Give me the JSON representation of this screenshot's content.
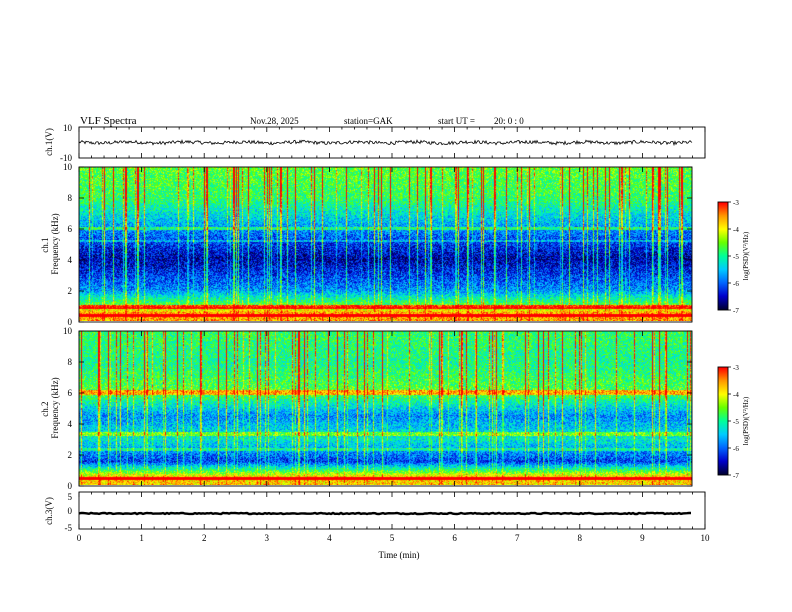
{
  "header": {
    "title": "VLF Spectra",
    "date": "Nov.28, 2025",
    "station": "station=GAK",
    "start": "start UT =",
    "start_time": "20: 0 : 0"
  },
  "chart_data": [
    {
      "type": "line",
      "id": "ch1-waveform",
      "ylabel": "ch.1(V)",
      "ylim": [
        -10,
        10
      ],
      "yticks": [
        "10",
        "-10"
      ],
      "xlim": [
        0,
        10
      ],
      "series_color": "#000000"
    },
    {
      "type": "heatmap",
      "id": "ch1-spectrogram",
      "ylabel": "ch.1\nFrequency (kHz)",
      "ylim": [
        0,
        10
      ],
      "yticks": [
        "0",
        "2",
        "4",
        "6",
        "8",
        "10"
      ],
      "xlim": [
        0,
        9.8
      ],
      "colorbar": {
        "label": "log(PSD)(V²/Hz)",
        "range": [
          -7,
          -3
        ],
        "ticks": [
          "-3",
          "-4",
          "-5",
          "-6",
          "-7"
        ]
      },
      "profile_note_levels": [
        {
          "freq_khz": 0.5,
          "level": 0.85
        },
        {
          "freq_khz": 1.0,
          "level": 0.6
        },
        {
          "freq_khz": 2.0,
          "level": 0.3
        },
        {
          "freq_khz": 4.0,
          "level": 0.1
        },
        {
          "freq_khz": 5.5,
          "level": 0.25
        },
        {
          "freq_khz": 8.0,
          "level": 0.55
        },
        {
          "freq_khz": 10.0,
          "level": 0.6
        }
      ]
    },
    {
      "type": "heatmap",
      "id": "ch2-spectrogram",
      "ylabel": "ch.2\nFrequency (kHz)",
      "ylim": [
        0,
        10
      ],
      "yticks": [
        "0",
        "2",
        "4",
        "6",
        "8",
        "10"
      ],
      "xlim": [
        0,
        9.8
      ],
      "colorbar": {
        "label": "log(PSD)(V²/Hz)",
        "range": [
          -7,
          -3
        ],
        "ticks": [
          "-3",
          "-4",
          "-5",
          "-6",
          "-7"
        ]
      },
      "profile_note_levels": [
        {
          "freq_khz": 0.5,
          "level": 0.8
        },
        {
          "freq_khz": 1.5,
          "level": 0.2
        },
        {
          "freq_khz": 3.0,
          "level": 0.45
        },
        {
          "freq_khz": 4.5,
          "level": 0.3
        },
        {
          "freq_khz": 6.0,
          "level": 0.6
        },
        {
          "freq_khz": 8.0,
          "level": 0.5
        },
        {
          "freq_khz": 10.0,
          "level": 0.55
        }
      ]
    },
    {
      "type": "line",
      "id": "ch3-waveform",
      "ylabel": "ch.3(V)",
      "ylim": [
        -5,
        5
      ],
      "yticks": [
        "5",
        "0",
        "-5"
      ],
      "xlim": [
        0,
        10
      ],
      "constant_value": -0.8,
      "series_color": "#000000"
    }
  ],
  "xaxis": {
    "label": "Time (min)",
    "ticks": [
      "0",
      "1",
      "2",
      "3",
      "4",
      "5",
      "6",
      "7",
      "8",
      "9",
      "10"
    ],
    "range": [
      0,
      10
    ]
  },
  "colors": {
    "colormap": [
      "#000033",
      "#0000cc",
      "#0066ff",
      "#00ccff",
      "#00ff99",
      "#66ff00",
      "#ffff00",
      "#ff9900",
      "#ff0000",
      "#ffffff"
    ]
  }
}
